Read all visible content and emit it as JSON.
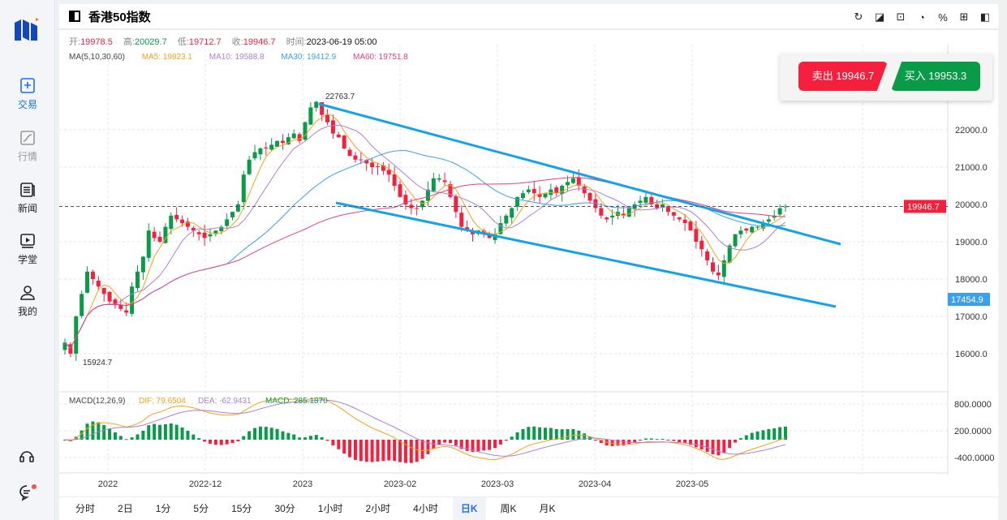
{
  "sidebar": {
    "items": [
      {
        "label": "交易",
        "icon": "plus-square-icon"
      },
      {
        "label": "行情",
        "icon": "chart-icon"
      },
      {
        "label": "新闻",
        "icon": "news-icon"
      },
      {
        "label": "学堂",
        "icon": "play-icon"
      },
      {
        "label": "我的",
        "icon": "user-icon"
      }
    ]
  },
  "header": {
    "title": "香港50指数",
    "tools": [
      "refresh-icon",
      "draw-icon",
      "indicator-icon",
      "pie-icon",
      "percent-icon",
      "grid-icon",
      "theme-icon"
    ]
  },
  "ohlc": {
    "open_label": "开:",
    "open": "19978.5",
    "high_label": "高:",
    "high": "20029.7",
    "low_label": "低:",
    "low": "19712.7",
    "close_label": "收:",
    "close": "19946.7",
    "time_label": "时间:",
    "time": "2023-06-19 05:00"
  },
  "ma": {
    "label": "MA(5,10,30,60)",
    "ma5": "MA5: 19823.1",
    "ma10": "MA10: 19588.8",
    "ma30": "MA30: 19412.9",
    "ma60": "MA60: 19751.8"
  },
  "macd": {
    "label": "MACD(12,26,9)",
    "dif": "DIF: 79.6504",
    "dea": "DEA: -62.9431",
    "macd": "MACD: 285.1870"
  },
  "trade": {
    "sell": "卖出 19946.7",
    "buy": "买入 19953.3"
  },
  "colors": {
    "up": "#0a9b48",
    "down": "#f5203d",
    "ma5": "#f7a21b",
    "ma10": "#b07fd6",
    "ma30": "#3aa0ee",
    "ma60": "#e9407f",
    "trend": "#14a3e8"
  },
  "chart_data": {
    "type": "candlestick",
    "closes": [
      16300,
      16000,
      17000,
      17600,
      18200,
      18000,
      17800,
      17600,
      17400,
      17300,
      17200,
      17100,
      17800,
      18200,
      18600,
      19300,
      19100,
      19000,
      19400,
      19700,
      19600,
      19500,
      19400,
      19300,
      19200,
      19100,
      19200,
      19300,
      19400,
      19600,
      19800,
      20000,
      20800,
      21200,
      21400,
      21500,
      21500,
      21600,
      21700,
      21650,
      21800,
      21900,
      21700,
      22200,
      22600,
      22750,
      22400,
      22200,
      21900,
      21800,
      21500,
      21300,
      21200,
      21200,
      21100,
      21000,
      21000,
      20900,
      20800,
      20500,
      20200,
      20000,
      19900,
      19900,
      20100,
      20400,
      20700,
      20700,
      20600,
      20200,
      19800,
      19400,
      19300,
      19200,
      19300,
      19200,
      19100,
      19200,
      19500,
      19700,
      19900,
      20200,
      20300,
      20400,
      20300,
      20200,
      20300,
      20400,
      20300,
      20500,
      20600,
      20700,
      20500,
      20300,
      20100,
      19900,
      19700,
      19600,
      19700,
      19800,
      19700,
      19900,
      20000,
      20100,
      20200,
      20000,
      19900,
      20000,
      19800,
      19700,
      19600,
      19500,
      19300,
      19000,
      18800,
      18500,
      18200,
      18100,
      18500,
      18900,
      19200,
      19300,
      19300,
      19400,
      19400,
      19500,
      19600,
      19700,
      19900,
      19946.7
    ],
    "price_ticks": [
      "22000.0",
      "21000.0",
      "20000.0",
      "19000.0",
      "18000.0",
      "17000.0",
      "16000.0"
    ],
    "macd_ticks": [
      "800.0000",
      "200.0000",
      "-400.0000"
    ],
    "date_ticks": [
      "2022",
      "2022-12",
      "2023",
      "2023-02",
      "2023-03",
      "2023-04",
      "2023-05"
    ],
    "current_price": "19946.7",
    "marker_price": "17454.9",
    "max_label": "22763.7",
    "min_label": "15924.7"
  },
  "periods": [
    {
      "label": "分时"
    },
    {
      "label": "2日"
    },
    {
      "label": "1分"
    },
    {
      "label": "5分"
    },
    {
      "label": "15分"
    },
    {
      "label": "30分"
    },
    {
      "label": "1小时"
    },
    {
      "label": "2小时"
    },
    {
      "label": "4小时"
    },
    {
      "label": "日K",
      "active": true
    },
    {
      "label": "周K"
    },
    {
      "label": "月K"
    }
  ]
}
